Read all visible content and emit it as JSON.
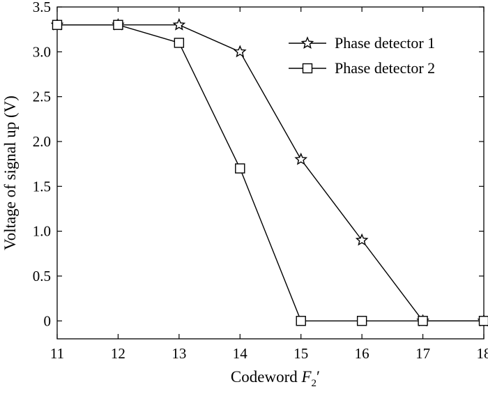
{
  "chart_data": {
    "type": "line",
    "xlabel": "Codeword F₂′",
    "xlabel_main": "Codeword ",
    "xlabel_var": "F",
    "xlabel_sub": "2",
    "xlabel_prime": "′",
    "ylabel": "Voltage of signal up (V)",
    "xlim": [
      11,
      18
    ],
    "ylim": [
      -0.2,
      3.5
    ],
    "x_ticks": [
      11,
      12,
      13,
      14,
      15,
      16,
      17,
      18
    ],
    "x_tick_labels": [
      "11",
      "12",
      "13",
      "14",
      "15",
      "16",
      "17",
      "18"
    ],
    "y_ticks": [
      0,
      0.5,
      1.0,
      1.5,
      2.0,
      2.5,
      3.0,
      3.5
    ],
    "y_tick_labels": [
      "0",
      "0.5",
      "1.0",
      "1.5",
      "2.0",
      "2.5",
      "3.0",
      "3.5"
    ],
    "grid": false,
    "legend_position": "top-right",
    "x": [
      11,
      12,
      13,
      14,
      15,
      16,
      17,
      18
    ],
    "series": [
      {
        "name": "Phase detector 1",
        "marker": "star",
        "color": "#000000",
        "values": [
          3.3,
          3.3,
          3.3,
          3.0,
          1.8,
          0.9,
          0,
          0
        ]
      },
      {
        "name": "Phase detector 2",
        "marker": "square",
        "color": "#000000",
        "values": [
          3.3,
          3.3,
          3.1,
          1.7,
          0,
          0,
          0,
          0
        ]
      }
    ]
  }
}
